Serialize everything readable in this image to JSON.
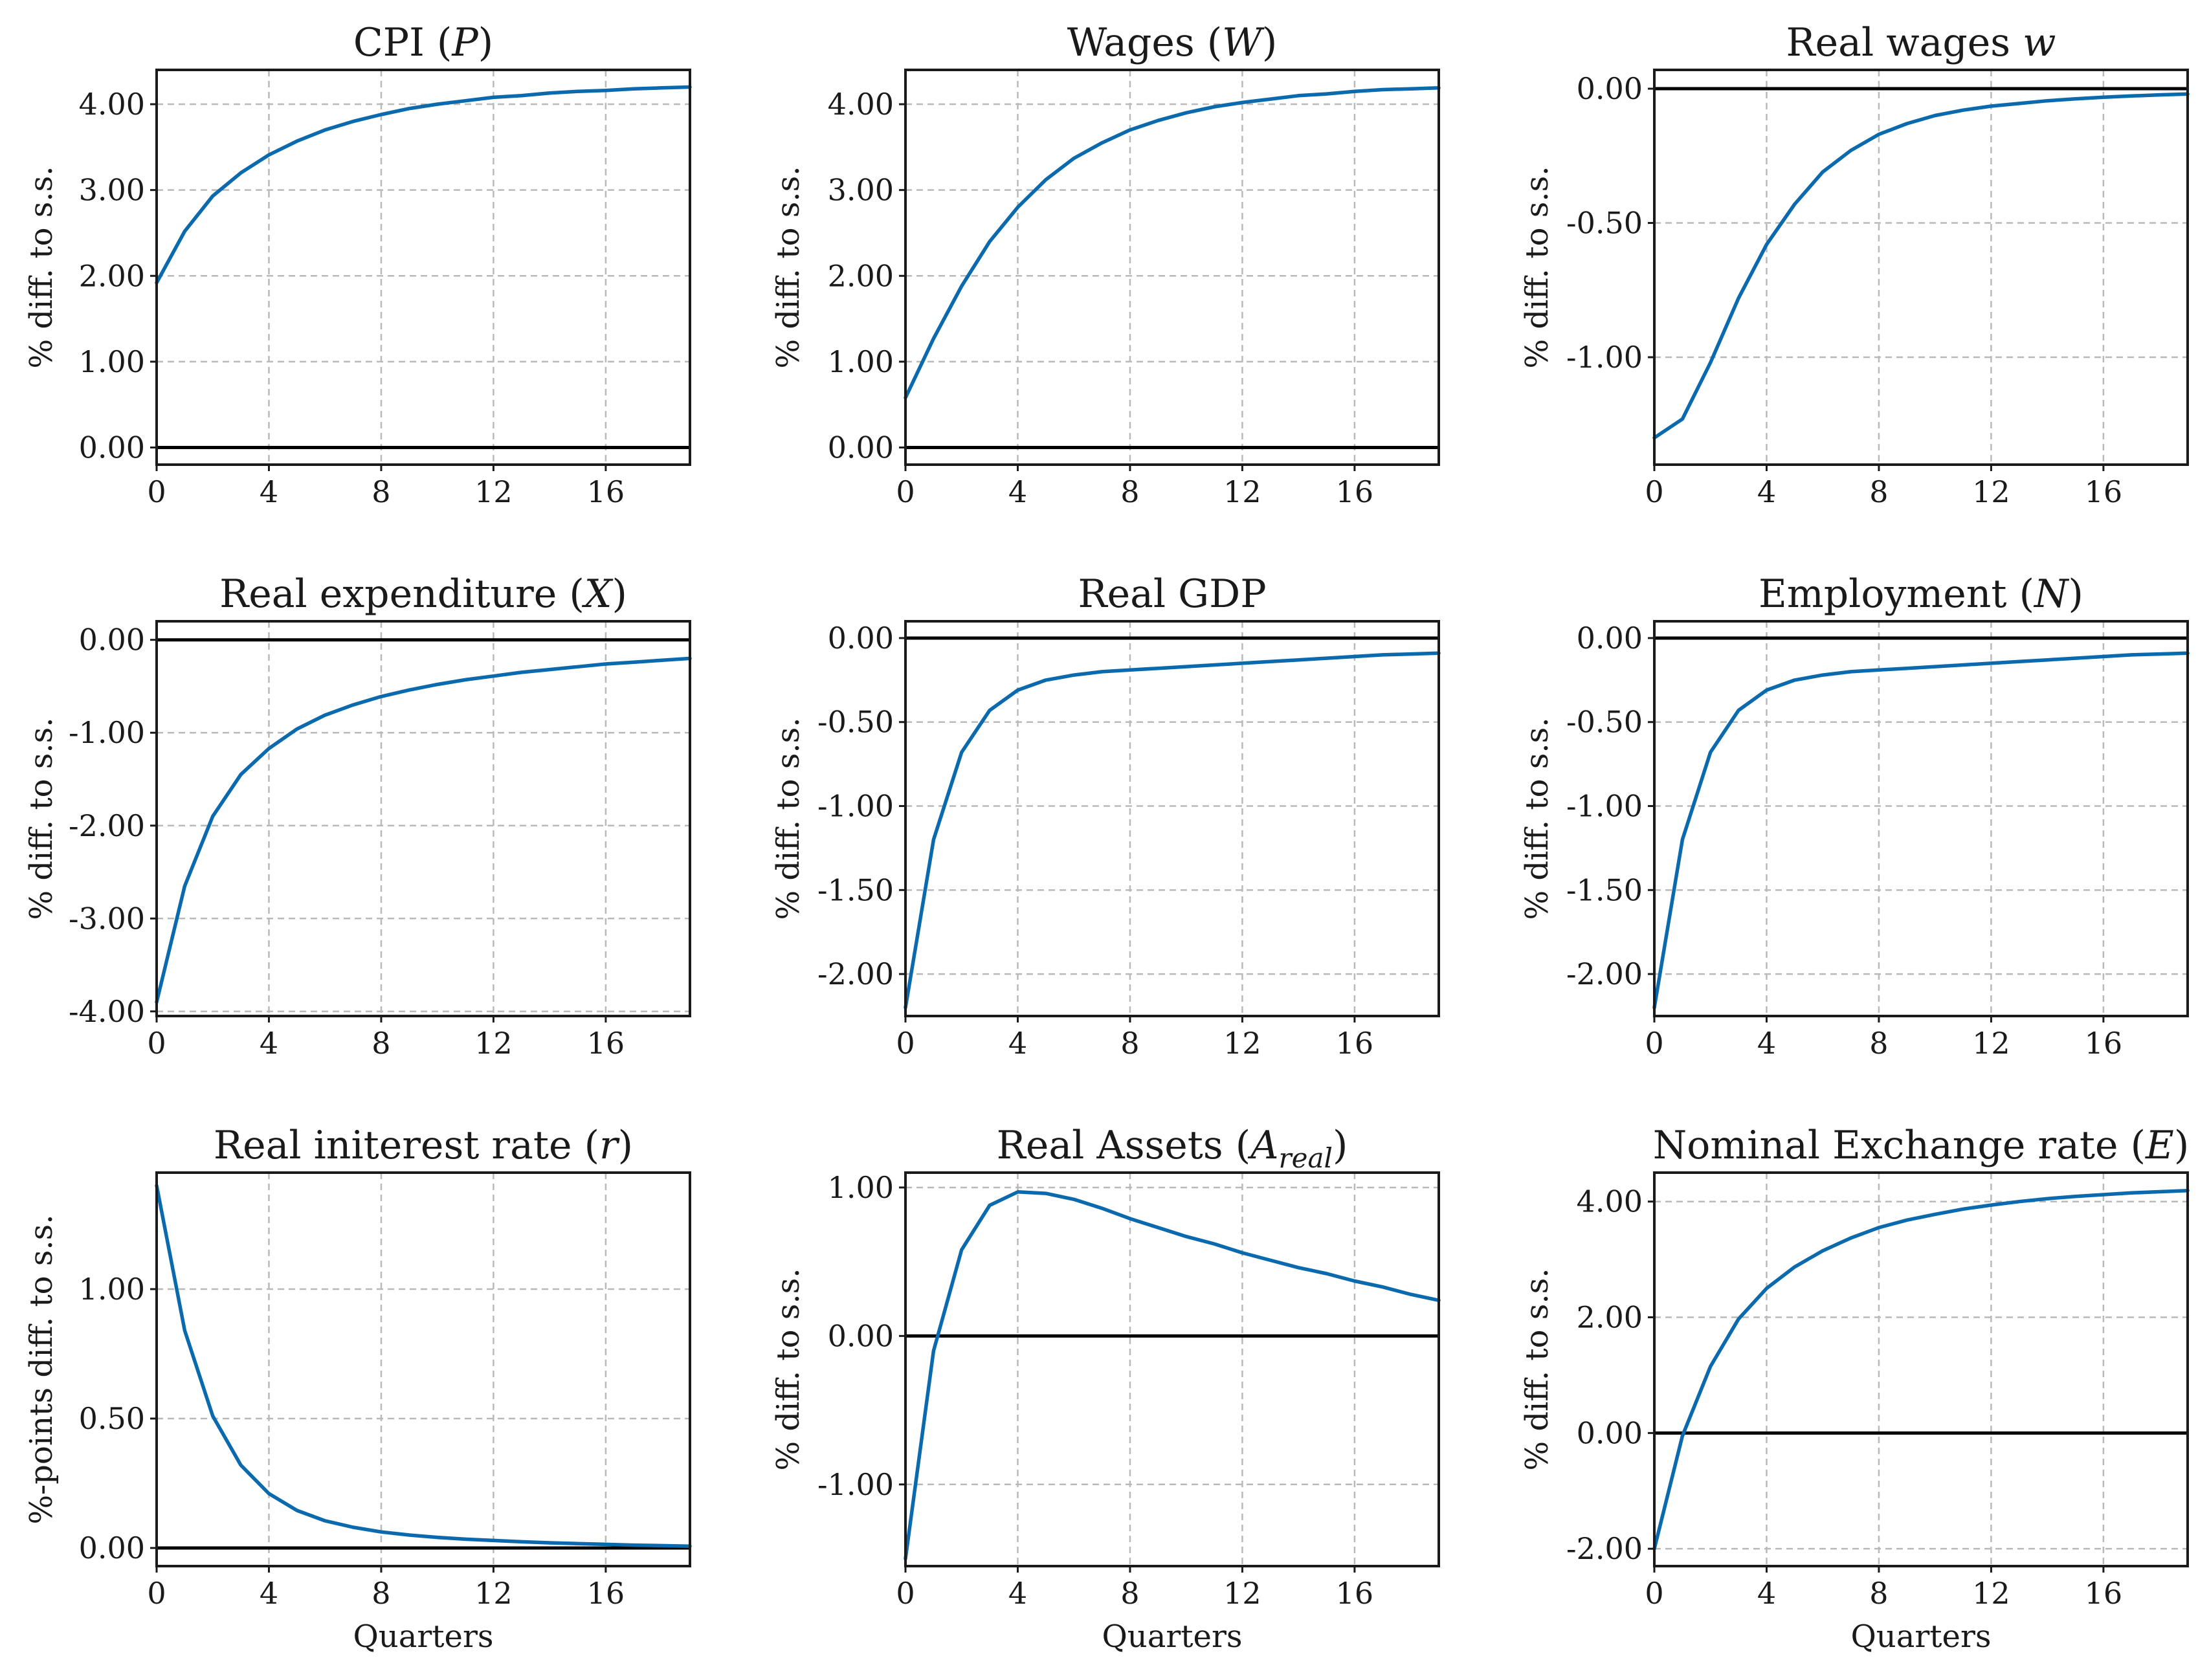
{
  "figure": {
    "xlabel_common": "Quarters"
  },
  "chart_data": [
    {
      "type": "line",
      "title": "CPI",
      "title_var": "P",
      "title_style": "paren",
      "xlabel": "",
      "ylabel": "% diff. to s.s.",
      "xlim": [
        0,
        19
      ],
      "ylim": [
        -0.2,
        4.4
      ],
      "xticks": [
        0,
        4,
        8,
        12,
        16
      ],
      "yticks": [
        0,
        1,
        2,
        3,
        4
      ],
      "ytick_labels": [
        "0.00",
        "1.00",
        "2.00",
        "3.00",
        "4.00"
      ],
      "grid": true,
      "zero_line": true,
      "series": [
        {
          "x": [
            0,
            1,
            2,
            3,
            4,
            5,
            6,
            7,
            8,
            9,
            10,
            11,
            12,
            13,
            14,
            15,
            16,
            17,
            18,
            19
          ],
          "values": [
            1.92,
            2.52,
            2.93,
            3.2,
            3.41,
            3.57,
            3.7,
            3.8,
            3.88,
            3.95,
            4.0,
            4.04,
            4.08,
            4.1,
            4.13,
            4.15,
            4.16,
            4.18,
            4.19,
            4.2
          ]
        }
      ]
    },
    {
      "type": "line",
      "title": "Wages",
      "title_var": "W",
      "title_style": "paren",
      "xlabel": "",
      "ylabel": "% diff. to s.s.",
      "xlim": [
        0,
        19
      ],
      "ylim": [
        -0.2,
        4.4
      ],
      "xticks": [
        0,
        4,
        8,
        12,
        16
      ],
      "yticks": [
        0,
        1,
        2,
        3,
        4
      ],
      "ytick_labels": [
        "0.00",
        "1.00",
        "2.00",
        "3.00",
        "4.00"
      ],
      "grid": true,
      "zero_line": true,
      "series": [
        {
          "x": [
            0,
            1,
            2,
            3,
            4,
            5,
            6,
            7,
            8,
            9,
            10,
            11,
            12,
            13,
            14,
            15,
            16,
            17,
            18,
            19
          ],
          "values": [
            0.58,
            1.27,
            1.88,
            2.4,
            2.8,
            3.12,
            3.37,
            3.55,
            3.7,
            3.81,
            3.9,
            3.97,
            4.02,
            4.06,
            4.1,
            4.12,
            4.15,
            4.17,
            4.18,
            4.19
          ]
        }
      ]
    },
    {
      "type": "line",
      "title": "Real wages",
      "title_var": "w",
      "title_style": "plain",
      "xlabel": "",
      "ylabel": "% diff. to s.s.",
      "xlim": [
        0,
        19
      ],
      "ylim": [
        -1.4,
        0.07
      ],
      "xticks": [
        0,
        4,
        8,
        12,
        16
      ],
      "yticks": [
        -1.0,
        -0.5,
        0.0
      ],
      "ytick_labels": [
        "-1.00",
        "-0.50",
        "0.00"
      ],
      "grid": true,
      "zero_line": true,
      "series": [
        {
          "x": [
            0,
            1,
            2,
            3,
            4,
            5,
            6,
            7,
            8,
            9,
            10,
            11,
            12,
            13,
            14,
            15,
            16,
            17,
            18,
            19
          ],
          "values": [
            -1.3,
            -1.23,
            -1.02,
            -0.78,
            -0.58,
            -0.43,
            -0.31,
            -0.23,
            -0.17,
            -0.13,
            -0.1,
            -0.08,
            -0.065,
            -0.055,
            -0.045,
            -0.038,
            -0.032,
            -0.027,
            -0.023,
            -0.02
          ]
        }
      ]
    },
    {
      "type": "line",
      "title": "Real expenditure",
      "title_var": "X",
      "title_style": "paren",
      "xlabel": "",
      "ylabel": "% diff. to s.s.",
      "xlim": [
        0,
        19
      ],
      "ylim": [
        -4.05,
        0.2
      ],
      "xticks": [
        0,
        4,
        8,
        12,
        16
      ],
      "yticks": [
        -4,
        -3,
        -2,
        -1,
        0
      ],
      "ytick_labels": [
        "-4.00",
        "-3.00",
        "-2.00",
        "-1.00",
        "0.00"
      ],
      "grid": true,
      "zero_line": true,
      "series": [
        {
          "x": [
            0,
            1,
            2,
            3,
            4,
            5,
            6,
            7,
            8,
            9,
            10,
            11,
            12,
            13,
            14,
            15,
            16,
            17,
            18,
            19
          ],
          "values": [
            -3.9,
            -2.65,
            -1.9,
            -1.45,
            -1.17,
            -0.96,
            -0.81,
            -0.7,
            -0.61,
            -0.54,
            -0.48,
            -0.43,
            -0.39,
            -0.35,
            -0.32,
            -0.29,
            -0.26,
            -0.24,
            -0.22,
            -0.2
          ]
        }
      ]
    },
    {
      "type": "line",
      "title": "Real GDP",
      "title_var": "",
      "title_style": "none",
      "xlabel": "",
      "ylabel": "% diff. to s.s.",
      "xlim": [
        0,
        19
      ],
      "ylim": [
        -2.25,
        0.1
      ],
      "xticks": [
        0,
        4,
        8,
        12,
        16
      ],
      "yticks": [
        -2.0,
        -1.5,
        -1.0,
        -0.5,
        0.0
      ],
      "ytick_labels": [
        "-2.00",
        "-1.50",
        "-1.00",
        "-0.50",
        "0.00"
      ],
      "grid": true,
      "zero_line": true,
      "series": [
        {
          "x": [
            0,
            1,
            2,
            3,
            4,
            5,
            6,
            7,
            8,
            9,
            10,
            11,
            12,
            13,
            14,
            15,
            16,
            17,
            18,
            19
          ],
          "values": [
            -2.2,
            -1.2,
            -0.68,
            -0.43,
            -0.31,
            -0.25,
            -0.22,
            -0.2,
            -0.19,
            -0.18,
            -0.17,
            -0.16,
            -0.15,
            -0.14,
            -0.13,
            -0.12,
            -0.11,
            -0.1,
            -0.095,
            -0.09
          ]
        }
      ]
    },
    {
      "type": "line",
      "title": "Employment",
      "title_var": "N",
      "title_style": "paren",
      "xlabel": "",
      "ylabel": "% diff. to s.s.",
      "xlim": [
        0,
        19
      ],
      "ylim": [
        -2.25,
        0.1
      ],
      "xticks": [
        0,
        4,
        8,
        12,
        16
      ],
      "yticks": [
        -2.0,
        -1.5,
        -1.0,
        -0.5,
        0.0
      ],
      "ytick_labels": [
        "-2.00",
        "-1.50",
        "-1.00",
        "-0.50",
        "0.00"
      ],
      "grid": true,
      "zero_line": true,
      "series": [
        {
          "x": [
            0,
            1,
            2,
            3,
            4,
            5,
            6,
            7,
            8,
            9,
            10,
            11,
            12,
            13,
            14,
            15,
            16,
            17,
            18,
            19
          ],
          "values": [
            -2.2,
            -1.2,
            -0.68,
            -0.43,
            -0.31,
            -0.25,
            -0.22,
            -0.2,
            -0.19,
            -0.18,
            -0.17,
            -0.16,
            -0.15,
            -0.14,
            -0.13,
            -0.12,
            -0.11,
            -0.1,
            -0.095,
            -0.09
          ]
        }
      ]
    },
    {
      "type": "line",
      "title": "Real initerest rate",
      "title_var": "r",
      "title_style": "paren",
      "xlabel": "Quarters",
      "ylabel": "%-points diff. to s.s.",
      "xlim": [
        0,
        19
      ],
      "ylim": [
        -0.07,
        1.45
      ],
      "xticks": [
        0,
        4,
        8,
        12,
        16
      ],
      "yticks": [
        0.0,
        0.5,
        1.0
      ],
      "ytick_labels": [
        "0.00",
        "0.50",
        "1.00"
      ],
      "grid": true,
      "zero_line": true,
      "series": [
        {
          "x": [
            0,
            1,
            2,
            3,
            4,
            5,
            6,
            7,
            8,
            9,
            10,
            11,
            12,
            13,
            14,
            15,
            16,
            17,
            18,
            19
          ],
          "values": [
            1.4,
            0.84,
            0.51,
            0.32,
            0.21,
            0.145,
            0.105,
            0.08,
            0.062,
            0.05,
            0.041,
            0.034,
            0.029,
            0.024,
            0.02,
            0.017,
            0.014,
            0.011,
            0.009,
            0.007
          ]
        }
      ]
    },
    {
      "type": "line",
      "title": "Real Assets",
      "title_var": "A",
      "title_sub": "real",
      "title_style": "paren",
      "xlabel": "Quarters",
      "ylabel": "% diff. to s.s.",
      "xlim": [
        0,
        19
      ],
      "ylim": [
        -1.55,
        1.1
      ],
      "xticks": [
        0,
        4,
        8,
        12,
        16
      ],
      "yticks": [
        -1.0,
        0.0,
        1.0
      ],
      "ytick_labels": [
        "-1.00",
        "0.00",
        "1.00"
      ],
      "grid": true,
      "zero_line": true,
      "series": [
        {
          "x": [
            0,
            1,
            2,
            3,
            4,
            5,
            6,
            7,
            8,
            9,
            10,
            11,
            12,
            13,
            14,
            15,
            16,
            17,
            18,
            19
          ],
          "values": [
            -1.5,
            -0.1,
            0.58,
            0.88,
            0.97,
            0.96,
            0.92,
            0.86,
            0.79,
            0.73,
            0.67,
            0.62,
            0.56,
            0.51,
            0.46,
            0.42,
            0.37,
            0.33,
            0.28,
            0.24
          ]
        }
      ]
    },
    {
      "type": "line",
      "title": "Nominal Exchange rate",
      "title_var": "E",
      "title_style": "paren",
      "xlabel": "Quarters",
      "ylabel": "% diff. to s.s.",
      "xlim": [
        0,
        19
      ],
      "ylim": [
        -2.3,
        4.5
      ],
      "xticks": [
        0,
        4,
        8,
        12,
        16
      ],
      "yticks": [
        -2,
        0,
        2,
        4
      ],
      "ytick_labels": [
        "-2.00",
        "0.00",
        "2.00",
        "4.00"
      ],
      "grid": true,
      "zero_line": true,
      "series": [
        {
          "x": [
            0,
            1,
            2,
            3,
            4,
            5,
            6,
            7,
            8,
            9,
            10,
            11,
            12,
            13,
            14,
            15,
            16,
            17,
            18,
            19
          ],
          "values": [
            -2.0,
            -0.05,
            1.15,
            1.97,
            2.5,
            2.87,
            3.15,
            3.37,
            3.55,
            3.68,
            3.78,
            3.87,
            3.94,
            4.0,
            4.05,
            4.09,
            4.12,
            4.15,
            4.17,
            4.19
          ]
        }
      ]
    }
  ]
}
